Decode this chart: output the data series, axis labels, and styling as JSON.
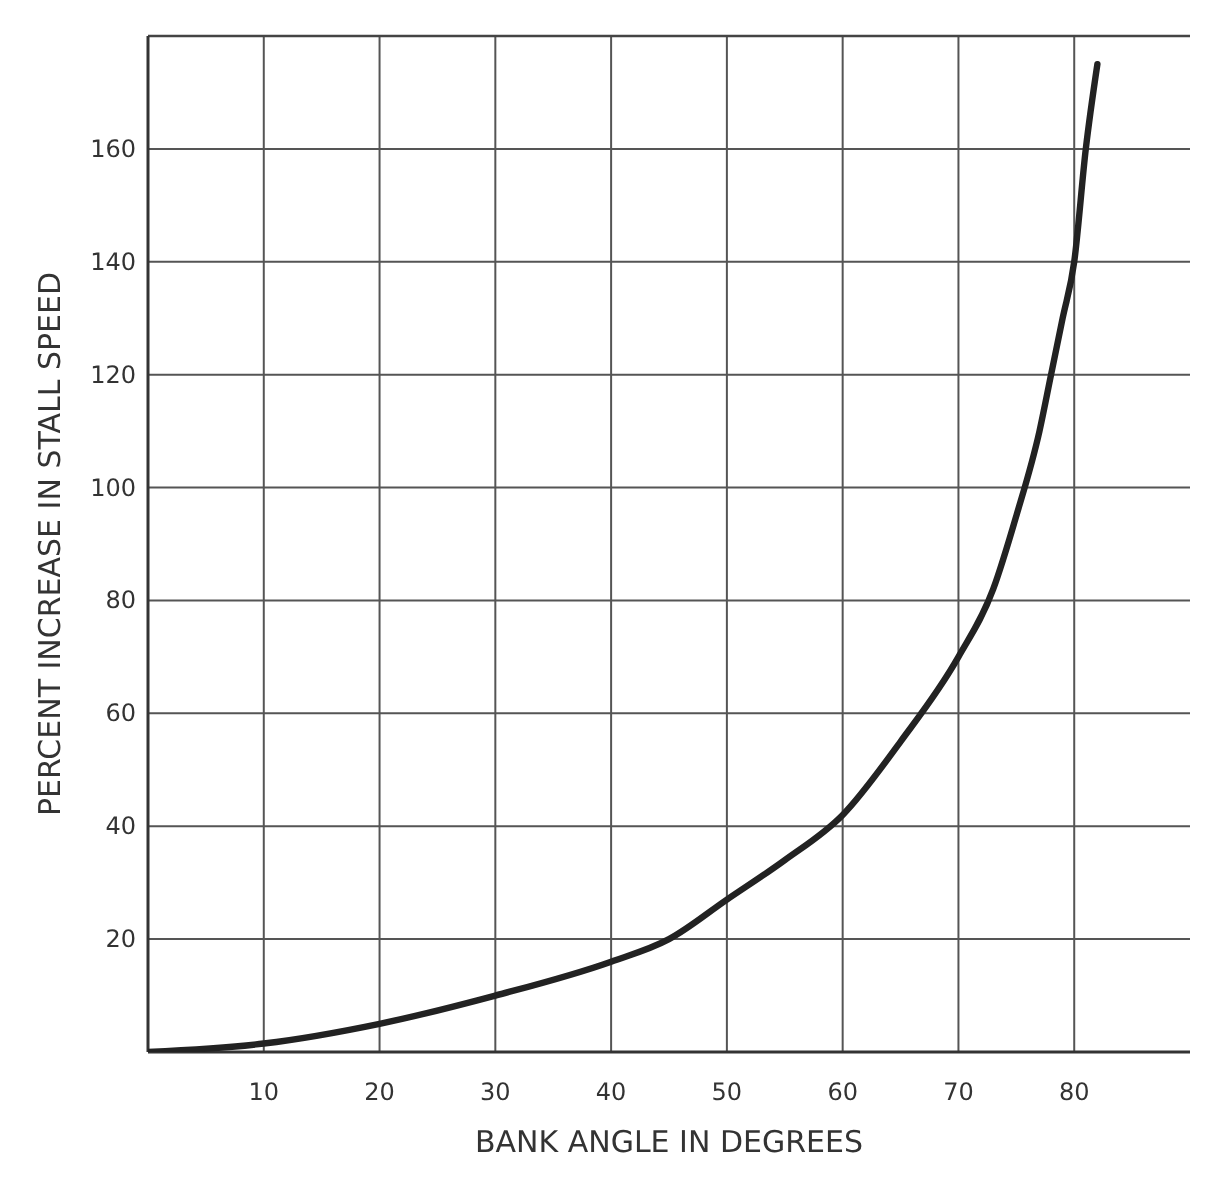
{
  "chart_data": {
    "type": "line",
    "xlabel": "BANK ANGLE IN DEGREES",
    "ylabel": "PERCENT INCREASE IN STALL SPEED",
    "x": [
      0,
      10,
      20,
      30,
      40,
      45,
      50,
      55,
      60,
      65,
      70,
      73,
      75,
      77,
      78,
      79,
      80,
      81,
      82
    ],
    "series": [
      {
        "color": "#222222",
        "values": [
          0,
          1.5,
          5,
          10,
          16,
          20,
          27,
          34,
          42,
          55,
          70,
          82,
          95,
          110,
          120,
          130,
          140,
          160,
          175
        ]
      }
    ],
    "xlim": [
      0,
      90
    ],
    "ylim": [
      0,
      180
    ],
    "xticks": [
      10,
      20,
      30,
      40,
      50,
      60,
      70,
      80
    ],
    "yticks": [
      20,
      40,
      60,
      80,
      100,
      120,
      140,
      160
    ],
    "grid": true,
    "marker": "none",
    "line_style": "solid"
  }
}
